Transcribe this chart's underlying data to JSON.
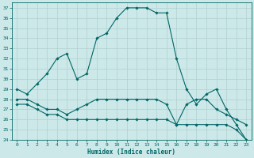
{
  "xlabel": "Humidex (Indice chaleur)",
  "bg_color": "#cde8e8",
  "line_color": "#006666",
  "grid_color": "#b0d0d0",
  "xlim": [
    -0.5,
    23.5
  ],
  "ylim": [
    24,
    37.5
  ],
  "yticks": [
    24,
    25,
    26,
    27,
    28,
    29,
    30,
    31,
    32,
    33,
    34,
    35,
    36,
    37
  ],
  "xticks": [
    0,
    1,
    2,
    3,
    4,
    5,
    6,
    7,
    8,
    9,
    10,
    11,
    12,
    13,
    14,
    15,
    16,
    17,
    18,
    19,
    20,
    21,
    22,
    23
  ],
  "line1_x": [
    0,
    1,
    2,
    3,
    4,
    5,
    6,
    7,
    8,
    9,
    10,
    11,
    12,
    13,
    14,
    15,
    16,
    17,
    18,
    19,
    20,
    21,
    22,
    23
  ],
  "line1_y": [
    29,
    28.5,
    29.5,
    30.5,
    32,
    32.5,
    30,
    30.5,
    34,
    34.5,
    36,
    37,
    37,
    37,
    36.5,
    36.5,
    32,
    29,
    27.5,
    28.5,
    29,
    27,
    25.5,
    24
  ],
  "line2_x": [
    0,
    1,
    2,
    3,
    4,
    5,
    6,
    7,
    8,
    9,
    10,
    11,
    12,
    13,
    14,
    15,
    16,
    17,
    18,
    19,
    20,
    21,
    22,
    23
  ],
  "line2_y": [
    28,
    28,
    27.5,
    27,
    27,
    26.5,
    27,
    27.5,
    28,
    28,
    28,
    28,
    28,
    28,
    28,
    27.5,
    25.5,
    27.5,
    28,
    28,
    27,
    26.5,
    26,
    25.5
  ],
  "line3_x": [
    0,
    1,
    2,
    3,
    4,
    5,
    6,
    7,
    8,
    9,
    10,
    11,
    12,
    13,
    14,
    15,
    16,
    17,
    18,
    19,
    20,
    21,
    22,
    23
  ],
  "line3_y": [
    27.5,
    27.5,
    27,
    26.5,
    26.5,
    26,
    26,
    26,
    26,
    26,
    26,
    26,
    26,
    26,
    26,
    26,
    25.5,
    25.5,
    25.5,
    25.5,
    25.5,
    25.5,
    25,
    24
  ]
}
